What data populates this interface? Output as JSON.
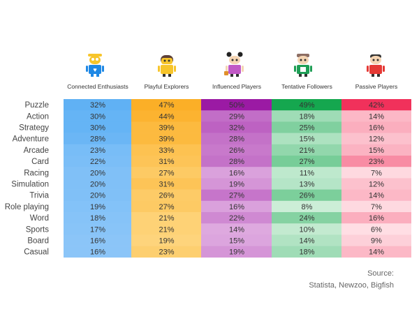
{
  "chart_data": {
    "type": "heatmap",
    "columns": [
      "Connected Enthusiasts",
      "Playful Explorers",
      "Influenced Players",
      "Tentative Followers",
      "Passive Players"
    ],
    "categories": [
      "Puzzle",
      "Action",
      "Strategy",
      "Adventure",
      "Arcade",
      "Card",
      "Racing",
      "Simulation",
      "Trivia",
      "Role playing",
      "Word",
      "Sports",
      "Board",
      "Casual"
    ],
    "series": [
      {
        "name": "Connected Enthusiasts",
        "values": [
          32,
          30,
          30,
          28,
          23,
          22,
          20,
          20,
          20,
          19,
          18,
          17,
          16,
          16
        ]
      },
      {
        "name": "Playful Explorers",
        "values": [
          47,
          44,
          39,
          39,
          33,
          31,
          27,
          31,
          26,
          27,
          21,
          21,
          19,
          23
        ]
      },
      {
        "name": "Influenced Players",
        "values": [
          50,
          29,
          32,
          28,
          26,
          28,
          16,
          19,
          27,
          16,
          22,
          14,
          15,
          19
        ]
      },
      {
        "name": "Tentative Followers",
        "values": [
          49,
          18,
          25,
          15,
          21,
          27,
          11,
          13,
          26,
          8,
          24,
          10,
          14,
          18
        ]
      },
      {
        "name": "Passive Players",
        "values": [
          42,
          14,
          16,
          12,
          15,
          23,
          7,
          12,
          14,
          7,
          16,
          6,
          9,
          14
        ]
      }
    ],
    "unit": "%",
    "palette": {
      "Connected Enthusiasts": [
        "#a9d3fb",
        "#2f9bf0"
      ],
      "Playful Explorers": [
        "#ffe7a6",
        "#fbab1e"
      ],
      "Influenced Players": [
        "#efcdee",
        "#9b1aa4"
      ],
      "Tentative Followers": [
        "#d9f3e1",
        "#11a54c"
      ],
      "Passive Players": [
        "#ffe3e8",
        "#ee0a3d"
      ]
    }
  },
  "source": {
    "line1": "Source:",
    "line2": "Statista, Newzoo, Bigfish"
  },
  "icons": [
    "connected-enthusiasts-android",
    "playful-explorers-android",
    "influenced-players-android",
    "tentative-followers-android",
    "passive-players-android"
  ]
}
